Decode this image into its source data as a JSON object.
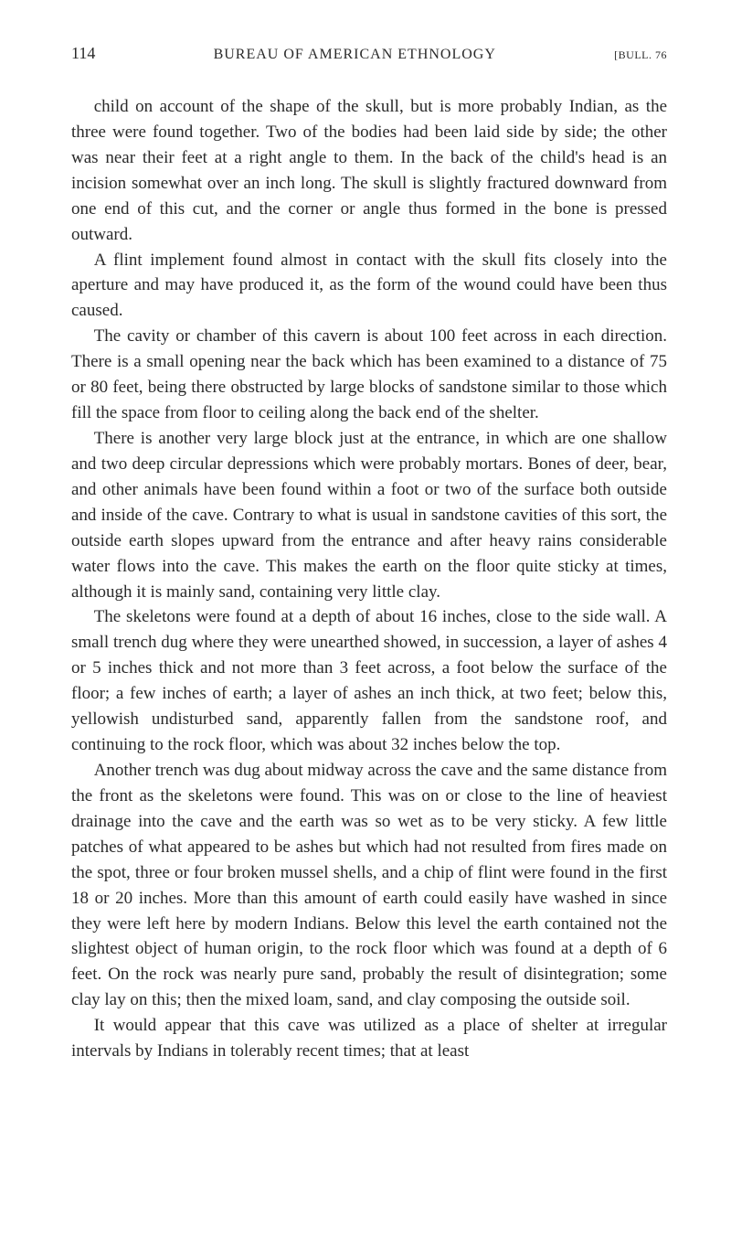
{
  "header": {
    "page_number": "114",
    "title": "BUREAU OF AMERICAN ETHNOLOGY",
    "reference": "[BULL. 76"
  },
  "paragraphs": {
    "p1": "child on account of the shape of the skull, but is more probably In­dian, as the three were found together. Two of the bodies had been laid side by side; the other was near their feet at a right angle to them. In the back of the child's head is an incision somewhat over an inch long. The skull is slightly fractured downward from one end of this cut, and the corner or angle thus formed in the bone is pressed outward.",
    "p2": "A flint implement found almost in contact with the skull fits closely into the aperture and may have produced it, as the form of the wound could have been thus caused.",
    "p3": "The cavity or chamber of this cavern is about 100 feet across in each direction. There is a small opening near the back which has been examined to a distance of 75 or 80 feet, being there obstructed by large blocks of sandstone similar to those which fill the space from floor to ceiling along the back end of the shelter.",
    "p4": "There is another very large block just at the entrance, in which are one shallow and two deep circular depressions which were probably mortars. Bones of deer, bear, and other animals have been found within a foot or two of the surface both outside and inside of the cave. Contrary to what is usual in sandstone cavities of this sort, the outside earth slopes upward from the entrance and after heavy rains considerable water flows into the cave. This makes the earth on the floor quite sticky at times, although it is mainly sand, containing very little clay.",
    "p5": "The skeletons were found at a depth of about 16 inches, close to the side wall. A small trench dug where they were unearthed showed, in succession, a layer of ashes 4 or 5 inches thick and not more than 3 feet across, a foot below the surface of the floor; a few inches of earth; a layer of ashes an inch thick, at two feet; below this, yellow­ish undisturbed sand, apparently fallen from the sandstone roof, and continuing to the rock floor, which was about 32 inches below the top.",
    "p6": "Another trench was dug about midway across the cave and the same distance from the front as the skeletons were found. This was on or close to the line of heaviest drainage into the cave and the earth was so wet as to be very sticky. A few little patches of what appeared to be ashes but which had not resulted from fires made on the spot, three or four broken mussel shells, and a chip of flint were found in the first 18 or 20 inches. More than this amount of earth could easily have washed in since they were left here by modern Indians. Below this level the earth contained not the slightest object of human origin, to the rock floor which was found at a depth of 6 feet. On the rock was nearly pure sand, probably the result of disintegration; some clay lay on this; then the mixed loam, sand, and clay composing the outside soil.",
    "p7": "It would appear that this cave was utilized as a place of shelter at irregular intervals by Indians in tolerably recent times; that at least"
  }
}
